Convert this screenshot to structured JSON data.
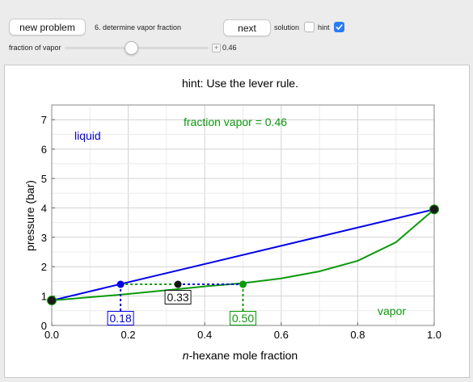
{
  "controls": {
    "new_problem_label": "new problem",
    "problem_label": "6. determine vapor fraction",
    "next_label": "next",
    "solution_label": "solution",
    "solution_checked": false,
    "hint_label": "hint",
    "hint_checked": true,
    "slider_label": "fraction of vapor",
    "slider_value": "0.46",
    "slider_fraction": 0.46
  },
  "plot": {
    "hint_text": "hint: Use the lever rule.",
    "fraction_text": "fraction vapor = 0.46",
    "liquid_label": "liquid",
    "vapor_label": "vapor",
    "colors": {
      "liquid": "#0000e6",
      "vapor": "#0c9a0c",
      "point": "#111111"
    }
  },
  "chart_data": {
    "type": "line",
    "xlabel_italic": "n",
    "xlabel_rest": "-hexane mole fraction",
    "ylabel": "pressure (bar)",
    "xlim": [
      0,
      1
    ],
    "ylim": [
      0,
      7.5
    ],
    "x_ticks": [
      "0.0",
      "0.2",
      "0.4",
      "0.6",
      "0.8",
      "1.0"
    ],
    "y_ticks": [
      "0",
      "1",
      "2",
      "3",
      "4",
      "5",
      "6",
      "7"
    ],
    "grid": true,
    "series": [
      {
        "name": "liquid",
        "points": [
          [
            0.0,
            0.85
          ],
          [
            1.0,
            3.95
          ]
        ]
      },
      {
        "name": "vapor",
        "points": [
          [
            0.0,
            0.85
          ],
          [
            0.1,
            0.96
          ],
          [
            0.2,
            1.07
          ],
          [
            0.3,
            1.2
          ],
          [
            0.4,
            1.33
          ],
          [
            0.5,
            1.44
          ],
          [
            0.6,
            1.6
          ],
          [
            0.7,
            1.84
          ],
          [
            0.8,
            2.2
          ],
          [
            0.9,
            2.83
          ],
          [
            1.0,
            3.95
          ]
        ]
      }
    ],
    "tie_line": {
      "pressure": 1.4,
      "x_liquid": 0.18,
      "x_overall": 0.33,
      "x_vapor": 0.5,
      "liquid_label": "0.18",
      "overall_label": "0.33",
      "vapor_label": "0.50"
    }
  }
}
